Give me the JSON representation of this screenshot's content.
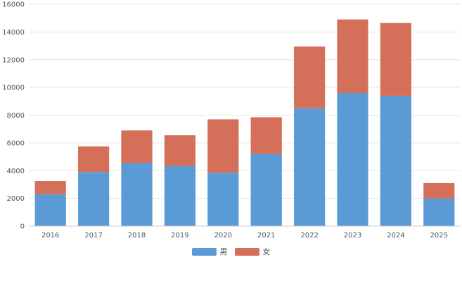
{
  "chart_data": {
    "type": "bar",
    "stacked": true,
    "categories": [
      "2016",
      "2017",
      "2018",
      "2019",
      "2020",
      "2021",
      "2022",
      "2023",
      "2024",
      "2025"
    ],
    "series": [
      {
        "name": "男",
        "color": "#5b9bd5",
        "values": [
          2300,
          3900,
          4550,
          4350,
          3850,
          5200,
          8500,
          9600,
          9400,
          2000
        ]
      },
      {
        "name": "女",
        "color": "#d4705a",
        "values": [
          950,
          1850,
          2350,
          2200,
          3850,
          2650,
          4450,
          5300,
          5250,
          1100
        ]
      }
    ],
    "ylim": [
      0,
      16000
    ],
    "yticks": [
      "0",
      "2000",
      "4000",
      "6000",
      "8000",
      "10000",
      "12000",
      "14000",
      "16000"
    ],
    "grid": true,
    "legend_position": "bottom-center"
  }
}
